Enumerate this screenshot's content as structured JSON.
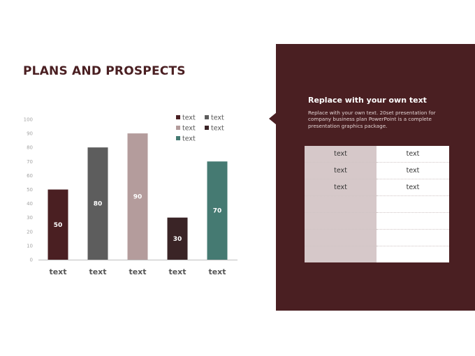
{
  "slide": {
    "title": "PLANS AND PROSPECTS"
  },
  "chart_data": {
    "type": "bar",
    "categories": [
      "text",
      "text",
      "text",
      "text",
      "text"
    ],
    "values": [
      50,
      80,
      90,
      30,
      70
    ],
    "colors": [
      "#4a1f22",
      "#5d5d5d",
      "#b49c9c",
      "#3a2426",
      "#457a72"
    ],
    "ylim": [
      0,
      100
    ],
    "yticks": [
      0,
      10,
      20,
      30,
      40,
      50,
      60,
      70,
      80,
      90,
      100
    ],
    "data_labels": true,
    "grid": false,
    "legend": {
      "placement": "top-right",
      "entries": [
        {
          "label": "text",
          "color": "#4a1f22"
        },
        {
          "label": "text",
          "color": "#5d5d5d"
        },
        {
          "label": "text",
          "color": "#b49c9c"
        },
        {
          "label": "text",
          "color": "#3a2426"
        },
        {
          "label": "text",
          "color": "#457a72"
        }
      ]
    }
  },
  "panel": {
    "heading": "Replace with your own text",
    "body": "Replace with your own text. 20set presentation for company business plan PowerPoint is a complete presentation graphics package.",
    "table": {
      "rows": [
        [
          "text",
          "text"
        ],
        [
          "text",
          "text"
        ],
        [
          "text",
          "text"
        ],
        [
          "",
          ""
        ],
        [
          "",
          ""
        ],
        [
          "",
          ""
        ],
        [
          "",
          ""
        ]
      ]
    }
  }
}
